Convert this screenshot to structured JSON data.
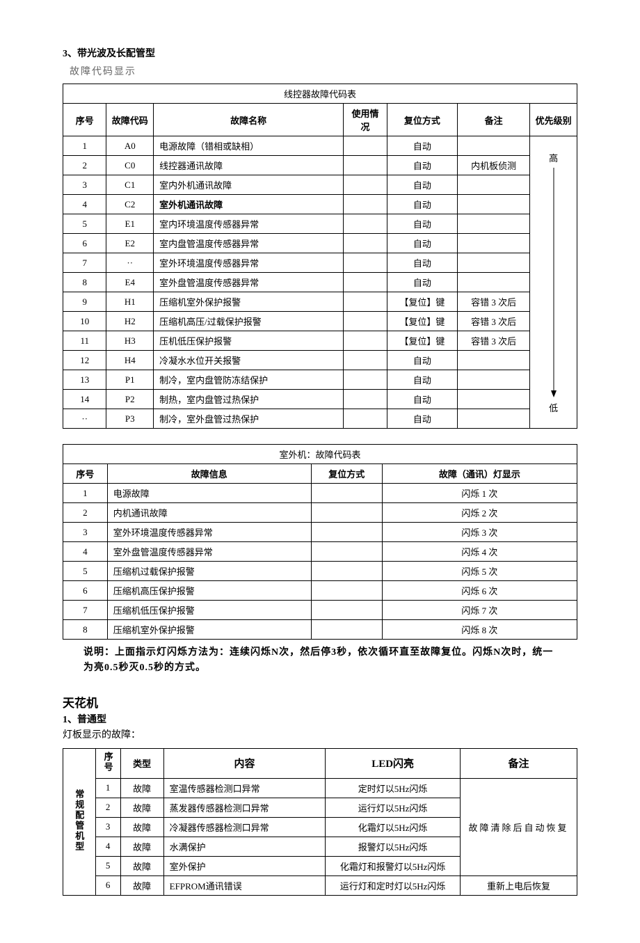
{
  "section1": {
    "number": "3",
    "title_rest": "、带光波及长配管型",
    "subtitle": "故障代码显示",
    "table1": {
      "caption": "线控器故障代码表",
      "headers": [
        "序号",
        "故障代码",
        "故障名称",
        "使用情况",
        "复位方式",
        "备注",
        "优先级别"
      ],
      "col_widths": [
        "48px",
        "52px",
        "210px",
        "48px",
        "78px",
        "80px",
        "52px"
      ],
      "priority_top": "高",
      "priority_bottom": "低",
      "rows": [
        {
          "n": "1",
          "code": "A0",
          "name": "电源故障（错相或缺相）",
          "use": "",
          "reset": "自动",
          "remark": ""
        },
        {
          "n": "2",
          "code": "C0",
          "name": "线控器通讯故障",
          "use": "",
          "reset": "自动",
          "remark": "内机板侦测"
        },
        {
          "n": "3",
          "code": "C1",
          "name": "室内外机通讯故障",
          "use": "",
          "reset": "自动",
          "remark": ""
        },
        {
          "n": "4",
          "code": "C2",
          "name": "室外机通讯故障",
          "name_bold": true,
          "use": "",
          "reset": "自动",
          "remark": ""
        },
        {
          "n": "5",
          "code": "E1",
          "name": "室内环境温度传感器异常",
          "use": "",
          "reset": "自动",
          "remark": ""
        },
        {
          "n": "6",
          "code": "E2",
          "name": "室内盘管温度传感器异常",
          "use": "",
          "reset": "自动",
          "remark": ""
        },
        {
          "n": "7",
          "code": "··",
          "name": "室外环境温度传感器异常",
          "use": "",
          "reset": "自动",
          "remark": ""
        },
        {
          "n": "8",
          "code": "E4",
          "name": "室外盘管温度传感器异常",
          "use": "",
          "reset": "自动",
          "remark": ""
        },
        {
          "n": "9",
          "code": "H1",
          "name": "压缩机室外保护报警",
          "use": "",
          "reset": "【复位】键",
          "remark": "容错 3 次后"
        },
        {
          "n": "10",
          "code": "H2",
          "name": "压缩机高压/过载保护报警",
          "use": "",
          "reset": "【复位】键",
          "remark": "容错 3 次后"
        },
        {
          "n": "11",
          "code": "H3",
          "name": "压机低压保护报警",
          "use": "",
          "reset": "【复位】键",
          "remark": "容错 3 次后"
        },
        {
          "n": "12",
          "code": "H4",
          "name": "冷凝水水位开关报警",
          "use": "",
          "reset": "自动",
          "remark": ""
        },
        {
          "n": "13",
          "code": "P1",
          "name": "制冷，室内盘管防冻结保护",
          "use": "",
          "reset": "自动",
          "remark": ""
        },
        {
          "n": "14",
          "code": "P2",
          "name": "制热，室内盘管过热保护",
          "use": "",
          "reset": "自动",
          "remark": ""
        },
        {
          "n": "··",
          "code": "P3",
          "name": "制冷，室外盘管过热保护",
          "use": "",
          "reset": "自动",
          "remark": ""
        }
      ]
    },
    "table2": {
      "caption": "室外机：故障代码表",
      "headers": [
        "序号",
        "故障信息",
        "复位方式",
        "故障（通讯）灯显示"
      ],
      "col_widths": [
        "50px",
        "230px",
        "80px",
        "220px"
      ],
      "rows": [
        {
          "n": "1",
          "info": "电源故障",
          "reset": "",
          "disp": "闪烁 1 次"
        },
        {
          "n": "2",
          "info": "内机通讯故障",
          "reset": "",
          "disp": "闪烁 2 次"
        },
        {
          "n": "3",
          "info": "室外环境温度传感器异常",
          "reset": "",
          "disp": "闪烁 3 次"
        },
        {
          "n": "4",
          "info": "室外盘管温度传感器异常",
          "reset": "",
          "disp": "闪烁 4 次"
        },
        {
          "n": "5",
          "info": "压缩机过载保护报警",
          "reset": "",
          "disp": "闪烁 5 次"
        },
        {
          "n": "6",
          "info": "压缩机高压保护报警",
          "reset": "",
          "disp": "闪烁 6 次"
        },
        {
          "n": "7",
          "info": "压缩机低压保护报警",
          "reset": "",
          "disp": "闪烁 7 次"
        },
        {
          "n": "8",
          "info": "压缩机室外保护报警",
          "reset": "",
          "disp": "闪烁 8 次"
        }
      ]
    },
    "note": "说明：上面指示灯闪烁方法为：连续闪烁N次，然后停3秒，依次循环直至故障复位。闪烁N次时，统一为亮0.5秒灭0.5秒的方式。"
  },
  "section2": {
    "h2": "天花机",
    "sub_num": "1",
    "sub_rest": "、普通型",
    "plain": "灯板显示的故障：",
    "table3": {
      "group_label": "常规配管机型",
      "headers": [
        "序号",
        "类型",
        "内容",
        "LED闪亮",
        "备注"
      ],
      "col_widths": [
        "36px",
        "28px",
        "48px",
        "180px",
        "150px",
        "130px"
      ],
      "remark_merged": "故障清除后自动恢复",
      "rows": [
        {
          "n": "1",
          "type": "故障",
          "content": "室温传感器检测口异常",
          "led": "定时灯以5Hz闪烁",
          "remark": null
        },
        {
          "n": "2",
          "type": "故障",
          "content": "蒸发器传感器检测口异常",
          "led": "运行灯以5Hz闪烁",
          "remark": null
        },
        {
          "n": "3",
          "type": "故障",
          "content": "冷凝器传感器检测口异常",
          "led": "化霜灯以5Hz闪烁",
          "remark": null
        },
        {
          "n": "4",
          "type": "故障",
          "content": "水满保护",
          "led": "报警灯以5Hz闪烁",
          "remark": null
        },
        {
          "n": "5",
          "type": "故障",
          "content": "室外保护",
          "led": "化霜灯和报警灯以5Hz闪烁",
          "remark": null
        },
        {
          "n": "6",
          "type": "故障",
          "content": "EFPROM通讯错误",
          "led": "运行灯和定时灯以5Hz闪烁",
          "remark": "重新上电后恢复"
        }
      ]
    }
  }
}
